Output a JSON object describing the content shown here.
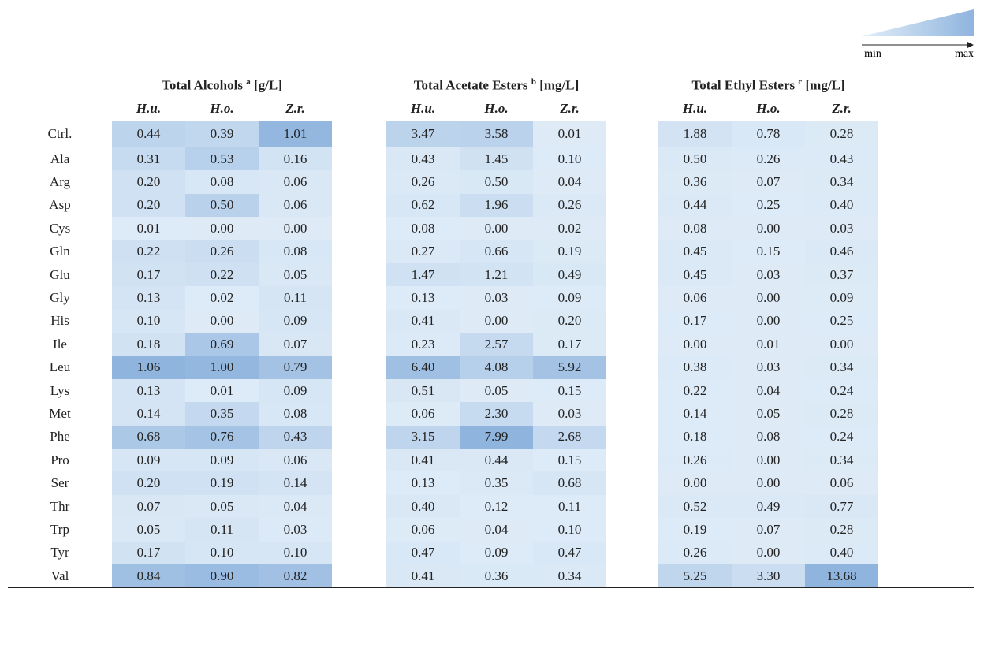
{
  "legend": {
    "min": "min",
    "max": "max"
  },
  "groups": [
    {
      "title": "Total Alcohols",
      "sup": "a",
      "unit": "[g/L]",
      "columns": [
        "H.u.",
        "H.o.",
        "Z.r."
      ]
    },
    {
      "title": "Total Acetate Esters",
      "sup": "b",
      "unit": "[mg/L]",
      "columns": [
        "H.u.",
        "H.o.",
        "Z.r."
      ]
    },
    {
      "title": "Total Ethyl Esters",
      "sup": "c",
      "unit": "[mg/L]",
      "columns": [
        "H.u.",
        "H.o.",
        "Z.r."
      ]
    }
  ],
  "control_row": {
    "label": "Ctrl.",
    "values": [
      "0.44",
      "0.39",
      "1.01",
      "3.47",
      "3.58",
      "0.01",
      "1.88",
      "0.78",
      "0.28"
    ]
  },
  "rows": [
    {
      "label": "Ala",
      "values": [
        "0.31",
        "0.53",
        "0.16",
        "0.43",
        "1.45",
        "0.10",
        "0.50",
        "0.26",
        "0.43"
      ]
    },
    {
      "label": "Arg",
      "values": [
        "0.20",
        "0.08",
        "0.06",
        "0.26",
        "0.50",
        "0.04",
        "0.36",
        "0.07",
        "0.34"
      ]
    },
    {
      "label": "Asp",
      "values": [
        "0.20",
        "0.50",
        "0.06",
        "0.62",
        "1.96",
        "0.26",
        "0.44",
        "0.25",
        "0.40"
      ]
    },
    {
      "label": "Cys",
      "values": [
        "0.01",
        "0.00",
        "0.00",
        "0.08",
        "0.00",
        "0.02",
        "0.08",
        "0.00",
        "0.03"
      ]
    },
    {
      "label": "Gln",
      "values": [
        "0.22",
        "0.26",
        "0.08",
        "0.27",
        "0.66",
        "0.19",
        "0.45",
        "0.15",
        "0.46"
      ]
    },
    {
      "label": "Glu",
      "values": [
        "0.17",
        "0.22",
        "0.05",
        "1.47",
        "1.21",
        "0.49",
        "0.45",
        "0.03",
        "0.37"
      ]
    },
    {
      "label": "Gly",
      "values": [
        "0.13",
        "0.02",
        "0.11",
        "0.13",
        "0.03",
        "0.09",
        "0.06",
        "0.00",
        "0.09"
      ]
    },
    {
      "label": "His",
      "values": [
        "0.10",
        "0.00",
        "0.09",
        "0.41",
        "0.00",
        "0.20",
        "0.17",
        "0.00",
        "0.25"
      ]
    },
    {
      "label": "Ile",
      "values": [
        "0.18",
        "0.69",
        "0.07",
        "0.23",
        "2.57",
        "0.17",
        "0.00",
        "0.01",
        "0.00"
      ]
    },
    {
      "label": "Leu",
      "values": [
        "1.06",
        "1.00",
        "0.79",
        "6.40",
        "4.08",
        "5.92",
        "0.38",
        "0.03",
        "0.34"
      ]
    },
    {
      "label": "Lys",
      "values": [
        "0.13",
        "0.01",
        "0.09",
        "0.51",
        "0.05",
        "0.15",
        "0.22",
        "0.04",
        "0.24"
      ]
    },
    {
      "label": "Met",
      "values": [
        "0.14",
        "0.35",
        "0.08",
        "0.06",
        "2.30",
        "0.03",
        "0.14",
        "0.05",
        "0.28"
      ]
    },
    {
      "label": "Phe",
      "values": [
        "0.68",
        "0.76",
        "0.43",
        "3.15",
        "7.99",
        "2.68",
        "0.18",
        "0.08",
        "0.24"
      ]
    },
    {
      "label": "Pro",
      "values": [
        "0.09",
        "0.09",
        "0.06",
        "0.41",
        "0.44",
        "0.15",
        "0.26",
        "0.00",
        "0.34"
      ]
    },
    {
      "label": "Ser",
      "values": [
        "0.20",
        "0.19",
        "0.14",
        "0.13",
        "0.35",
        "0.68",
        "0.00",
        "0.00",
        "0.06"
      ]
    },
    {
      "label": "Thr",
      "values": [
        "0.07",
        "0.05",
        "0.04",
        "0.40",
        "0.12",
        "0.11",
        "0.52",
        "0.49",
        "0.77"
      ]
    },
    {
      "label": "Trp",
      "values": [
        "0.05",
        "0.11",
        "0.03",
        "0.06",
        "0.04",
        "0.10",
        "0.19",
        "0.07",
        "0.28"
      ]
    },
    {
      "label": "Tyr",
      "values": [
        "0.17",
        "0.10",
        "0.10",
        "0.47",
        "0.09",
        "0.47",
        "0.26",
        "0.00",
        "0.40"
      ]
    },
    {
      "label": "Val",
      "values": [
        "0.84",
        "0.90",
        "0.82",
        "0.41",
        "0.36",
        "0.34",
        "5.25",
        "3.30",
        "13.68"
      ]
    }
  ]
}
